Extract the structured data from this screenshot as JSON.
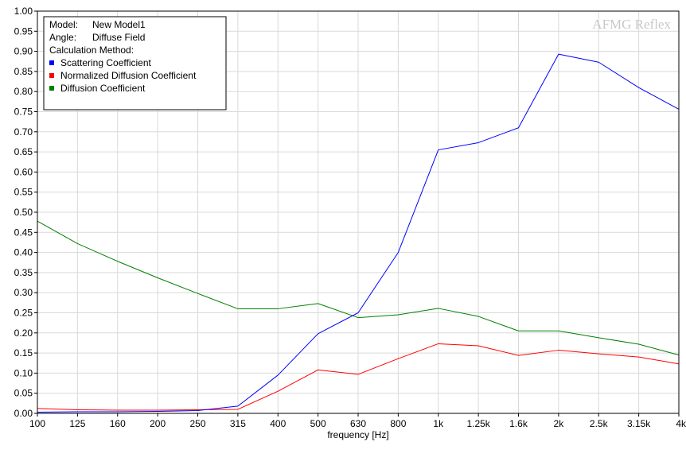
{
  "chart_data": {
    "type": "line",
    "watermark": "AFMG Reflex",
    "xlabel": "frequency [Hz]",
    "ylabel": "",
    "ylim": [
      0,
      1
    ],
    "ytick_labels": [
      "0.00",
      "0.05",
      "0.10",
      "0.15",
      "0.20",
      "0.25",
      "0.30",
      "0.35",
      "0.40",
      "0.45",
      "0.50",
      "0.55",
      "0.60",
      "0.65",
      "0.70",
      "0.75",
      "0.80",
      "0.85",
      "0.90",
      "0.95",
      "1.00"
    ],
    "categories": [
      "100",
      "125",
      "160",
      "200",
      "250",
      "315",
      "400",
      "500",
      "630",
      "800",
      "1k",
      "1.25k",
      "1.6k",
      "2k",
      "2.5k",
      "3.15k",
      "4k"
    ],
    "grid": true,
    "legend_position": "top-left",
    "legend": {
      "model_label": "Model:",
      "model_value": "New Model1",
      "angle_label": "Angle:",
      "angle_value": "Diffuse Field",
      "method_label": "Calculation Method:"
    },
    "series": [
      {
        "name": "Scattering Coefficient",
        "color": "#0000ff",
        "values": [
          0.003,
          0.004,
          0.004,
          0.005,
          0.007,
          0.018,
          0.095,
          0.198,
          0.25,
          0.4,
          0.655,
          0.673,
          0.71,
          0.893,
          0.873,
          0.81,
          0.756
        ]
      },
      {
        "name": "Normalized Diffusion Coefficient",
        "color": "#ff0000",
        "values": [
          0.012,
          0.009,
          0.008,
          0.008,
          0.009,
          0.01,
          0.055,
          0.108,
          0.097,
          0.136,
          0.173,
          0.168,
          0.144,
          0.157,
          0.148,
          0.14,
          0.123
        ]
      },
      {
        "name": "Diffusion Coefficient",
        "color": "#008000",
        "values": [
          0.478,
          0.422,
          0.378,
          0.337,
          0.298,
          0.26,
          0.26,
          0.273,
          0.238,
          0.245,
          0.261,
          0.241,
          0.205,
          0.205,
          0.188,
          0.172,
          0.145
        ]
      }
    ]
  }
}
